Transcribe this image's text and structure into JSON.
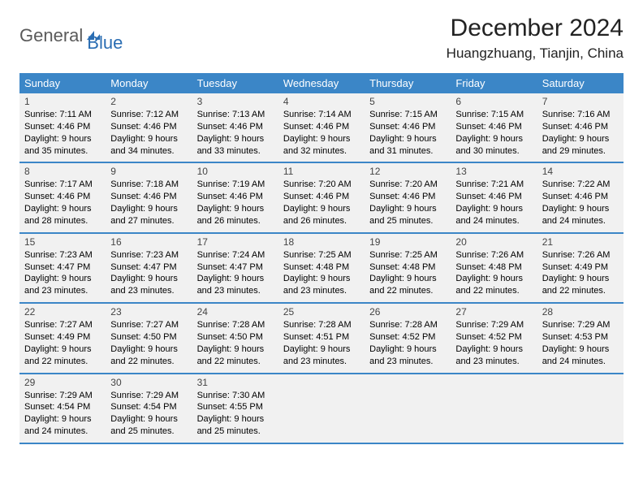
{
  "brand": {
    "word1": "General",
    "word2": "Blue",
    "accent_color": "#2a6db3",
    "text_color": "#5a5a5a"
  },
  "header": {
    "title": "December 2024",
    "location": "Huangzhuang, Tianjin, China"
  },
  "colors": {
    "header_bg": "#3b86c7",
    "header_text": "#ffffff",
    "cell_bg": "#f1f1f1",
    "rule": "#3b86c7"
  },
  "day_names": [
    "Sunday",
    "Monday",
    "Tuesday",
    "Wednesday",
    "Thursday",
    "Friday",
    "Saturday"
  ],
  "weeks": [
    [
      {
        "n": "1",
        "sr": "Sunrise: 7:11 AM",
        "ss": "Sunset: 4:46 PM",
        "dl1": "Daylight: 9 hours",
        "dl2": "and 35 minutes."
      },
      {
        "n": "2",
        "sr": "Sunrise: 7:12 AM",
        "ss": "Sunset: 4:46 PM",
        "dl1": "Daylight: 9 hours",
        "dl2": "and 34 minutes."
      },
      {
        "n": "3",
        "sr": "Sunrise: 7:13 AM",
        "ss": "Sunset: 4:46 PM",
        "dl1": "Daylight: 9 hours",
        "dl2": "and 33 minutes."
      },
      {
        "n": "4",
        "sr": "Sunrise: 7:14 AM",
        "ss": "Sunset: 4:46 PM",
        "dl1": "Daylight: 9 hours",
        "dl2": "and 32 minutes."
      },
      {
        "n": "5",
        "sr": "Sunrise: 7:15 AM",
        "ss": "Sunset: 4:46 PM",
        "dl1": "Daylight: 9 hours",
        "dl2": "and 31 minutes."
      },
      {
        "n": "6",
        "sr": "Sunrise: 7:15 AM",
        "ss": "Sunset: 4:46 PM",
        "dl1": "Daylight: 9 hours",
        "dl2": "and 30 minutes."
      },
      {
        "n": "7",
        "sr": "Sunrise: 7:16 AM",
        "ss": "Sunset: 4:46 PM",
        "dl1": "Daylight: 9 hours",
        "dl2": "and 29 minutes."
      }
    ],
    [
      {
        "n": "8",
        "sr": "Sunrise: 7:17 AM",
        "ss": "Sunset: 4:46 PM",
        "dl1": "Daylight: 9 hours",
        "dl2": "and 28 minutes."
      },
      {
        "n": "9",
        "sr": "Sunrise: 7:18 AM",
        "ss": "Sunset: 4:46 PM",
        "dl1": "Daylight: 9 hours",
        "dl2": "and 27 minutes."
      },
      {
        "n": "10",
        "sr": "Sunrise: 7:19 AM",
        "ss": "Sunset: 4:46 PM",
        "dl1": "Daylight: 9 hours",
        "dl2": "and 26 minutes."
      },
      {
        "n": "11",
        "sr": "Sunrise: 7:20 AM",
        "ss": "Sunset: 4:46 PM",
        "dl1": "Daylight: 9 hours",
        "dl2": "and 26 minutes."
      },
      {
        "n": "12",
        "sr": "Sunrise: 7:20 AM",
        "ss": "Sunset: 4:46 PM",
        "dl1": "Daylight: 9 hours",
        "dl2": "and 25 minutes."
      },
      {
        "n": "13",
        "sr": "Sunrise: 7:21 AM",
        "ss": "Sunset: 4:46 PM",
        "dl1": "Daylight: 9 hours",
        "dl2": "and 24 minutes."
      },
      {
        "n": "14",
        "sr": "Sunrise: 7:22 AM",
        "ss": "Sunset: 4:46 PM",
        "dl1": "Daylight: 9 hours",
        "dl2": "and 24 minutes."
      }
    ],
    [
      {
        "n": "15",
        "sr": "Sunrise: 7:23 AM",
        "ss": "Sunset: 4:47 PM",
        "dl1": "Daylight: 9 hours",
        "dl2": "and 23 minutes."
      },
      {
        "n": "16",
        "sr": "Sunrise: 7:23 AM",
        "ss": "Sunset: 4:47 PM",
        "dl1": "Daylight: 9 hours",
        "dl2": "and 23 minutes."
      },
      {
        "n": "17",
        "sr": "Sunrise: 7:24 AM",
        "ss": "Sunset: 4:47 PM",
        "dl1": "Daylight: 9 hours",
        "dl2": "and 23 minutes."
      },
      {
        "n": "18",
        "sr": "Sunrise: 7:25 AM",
        "ss": "Sunset: 4:48 PM",
        "dl1": "Daylight: 9 hours",
        "dl2": "and 23 minutes."
      },
      {
        "n": "19",
        "sr": "Sunrise: 7:25 AM",
        "ss": "Sunset: 4:48 PM",
        "dl1": "Daylight: 9 hours",
        "dl2": "and 22 minutes."
      },
      {
        "n": "20",
        "sr": "Sunrise: 7:26 AM",
        "ss": "Sunset: 4:48 PM",
        "dl1": "Daylight: 9 hours",
        "dl2": "and 22 minutes."
      },
      {
        "n": "21",
        "sr": "Sunrise: 7:26 AM",
        "ss": "Sunset: 4:49 PM",
        "dl1": "Daylight: 9 hours",
        "dl2": "and 22 minutes."
      }
    ],
    [
      {
        "n": "22",
        "sr": "Sunrise: 7:27 AM",
        "ss": "Sunset: 4:49 PM",
        "dl1": "Daylight: 9 hours",
        "dl2": "and 22 minutes."
      },
      {
        "n": "23",
        "sr": "Sunrise: 7:27 AM",
        "ss": "Sunset: 4:50 PM",
        "dl1": "Daylight: 9 hours",
        "dl2": "and 22 minutes."
      },
      {
        "n": "24",
        "sr": "Sunrise: 7:28 AM",
        "ss": "Sunset: 4:50 PM",
        "dl1": "Daylight: 9 hours",
        "dl2": "and 22 minutes."
      },
      {
        "n": "25",
        "sr": "Sunrise: 7:28 AM",
        "ss": "Sunset: 4:51 PM",
        "dl1": "Daylight: 9 hours",
        "dl2": "and 23 minutes."
      },
      {
        "n": "26",
        "sr": "Sunrise: 7:28 AM",
        "ss": "Sunset: 4:52 PM",
        "dl1": "Daylight: 9 hours",
        "dl2": "and 23 minutes."
      },
      {
        "n": "27",
        "sr": "Sunrise: 7:29 AM",
        "ss": "Sunset: 4:52 PM",
        "dl1": "Daylight: 9 hours",
        "dl2": "and 23 minutes."
      },
      {
        "n": "28",
        "sr": "Sunrise: 7:29 AM",
        "ss": "Sunset: 4:53 PM",
        "dl1": "Daylight: 9 hours",
        "dl2": "and 24 minutes."
      }
    ],
    [
      {
        "n": "29",
        "sr": "Sunrise: 7:29 AM",
        "ss": "Sunset: 4:54 PM",
        "dl1": "Daylight: 9 hours",
        "dl2": "and 24 minutes."
      },
      {
        "n": "30",
        "sr": "Sunrise: 7:29 AM",
        "ss": "Sunset: 4:54 PM",
        "dl1": "Daylight: 9 hours",
        "dl2": "and 25 minutes."
      },
      {
        "n": "31",
        "sr": "Sunrise: 7:30 AM",
        "ss": "Sunset: 4:55 PM",
        "dl1": "Daylight: 9 hours",
        "dl2": "and 25 minutes."
      },
      null,
      null,
      null,
      null
    ]
  ]
}
